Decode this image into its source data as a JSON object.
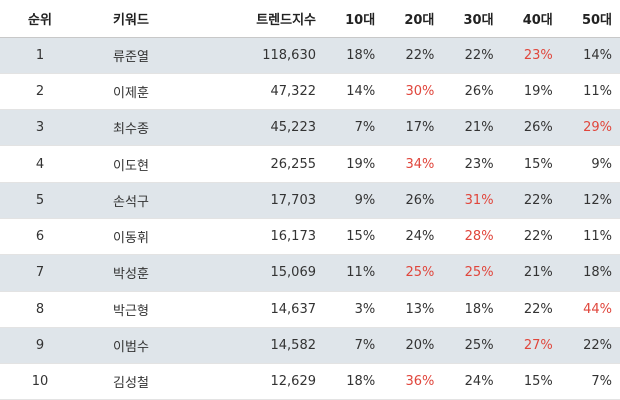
{
  "headers": [
    "순위",
    "키워드",
    "트렌드지수",
    "10대",
    "20대",
    "30대",
    "40대",
    "50대"
  ],
  "highlight_color": "#e0463c",
  "rows": [
    {
      "rank": "1",
      "keyword": "류준열",
      "trend": "118,630",
      "ages": [
        "18%",
        "22%",
        "22%",
        "23%",
        "14%"
      ],
      "hot": [
        false,
        false,
        false,
        true,
        false
      ]
    },
    {
      "rank": "2",
      "keyword": "이제훈",
      "trend": "47,322",
      "ages": [
        "14%",
        "30%",
        "26%",
        "19%",
        "11%"
      ],
      "hot": [
        false,
        true,
        false,
        false,
        false
      ]
    },
    {
      "rank": "3",
      "keyword": "최수종",
      "trend": "45,223",
      "ages": [
        "7%",
        "17%",
        "21%",
        "26%",
        "29%"
      ],
      "hot": [
        false,
        false,
        false,
        false,
        true
      ]
    },
    {
      "rank": "4",
      "keyword": "이도현",
      "trend": "26,255",
      "ages": [
        "19%",
        "34%",
        "23%",
        "15%",
        "9%"
      ],
      "hot": [
        false,
        true,
        false,
        false,
        false
      ]
    },
    {
      "rank": "5",
      "keyword": "손석구",
      "trend": "17,703",
      "ages": [
        "9%",
        "26%",
        "31%",
        "22%",
        "12%"
      ],
      "hot": [
        false,
        false,
        true,
        false,
        false
      ]
    },
    {
      "rank": "6",
      "keyword": "이동휘",
      "trend": "16,173",
      "ages": [
        "15%",
        "24%",
        "28%",
        "22%",
        "11%"
      ],
      "hot": [
        false,
        false,
        true,
        false,
        false
      ]
    },
    {
      "rank": "7",
      "keyword": "박성훈",
      "trend": "15,069",
      "ages": [
        "11%",
        "25%",
        "25%",
        "21%",
        "18%"
      ],
      "hot": [
        false,
        true,
        true,
        false,
        false
      ]
    },
    {
      "rank": "8",
      "keyword": "박근형",
      "trend": "14,637",
      "ages": [
        "3%",
        "13%",
        "18%",
        "22%",
        "44%"
      ],
      "hot": [
        false,
        false,
        false,
        false,
        true
      ]
    },
    {
      "rank": "9",
      "keyword": "이범수",
      "trend": "14,582",
      "ages": [
        "7%",
        "20%",
        "25%",
        "27%",
        "22%"
      ],
      "hot": [
        false,
        false,
        false,
        true,
        false
      ]
    },
    {
      "rank": "10",
      "keyword": "김성철",
      "trend": "12,629",
      "ages": [
        "18%",
        "36%",
        "24%",
        "15%",
        "7%"
      ],
      "hot": [
        false,
        true,
        false,
        false,
        false
      ]
    }
  ]
}
